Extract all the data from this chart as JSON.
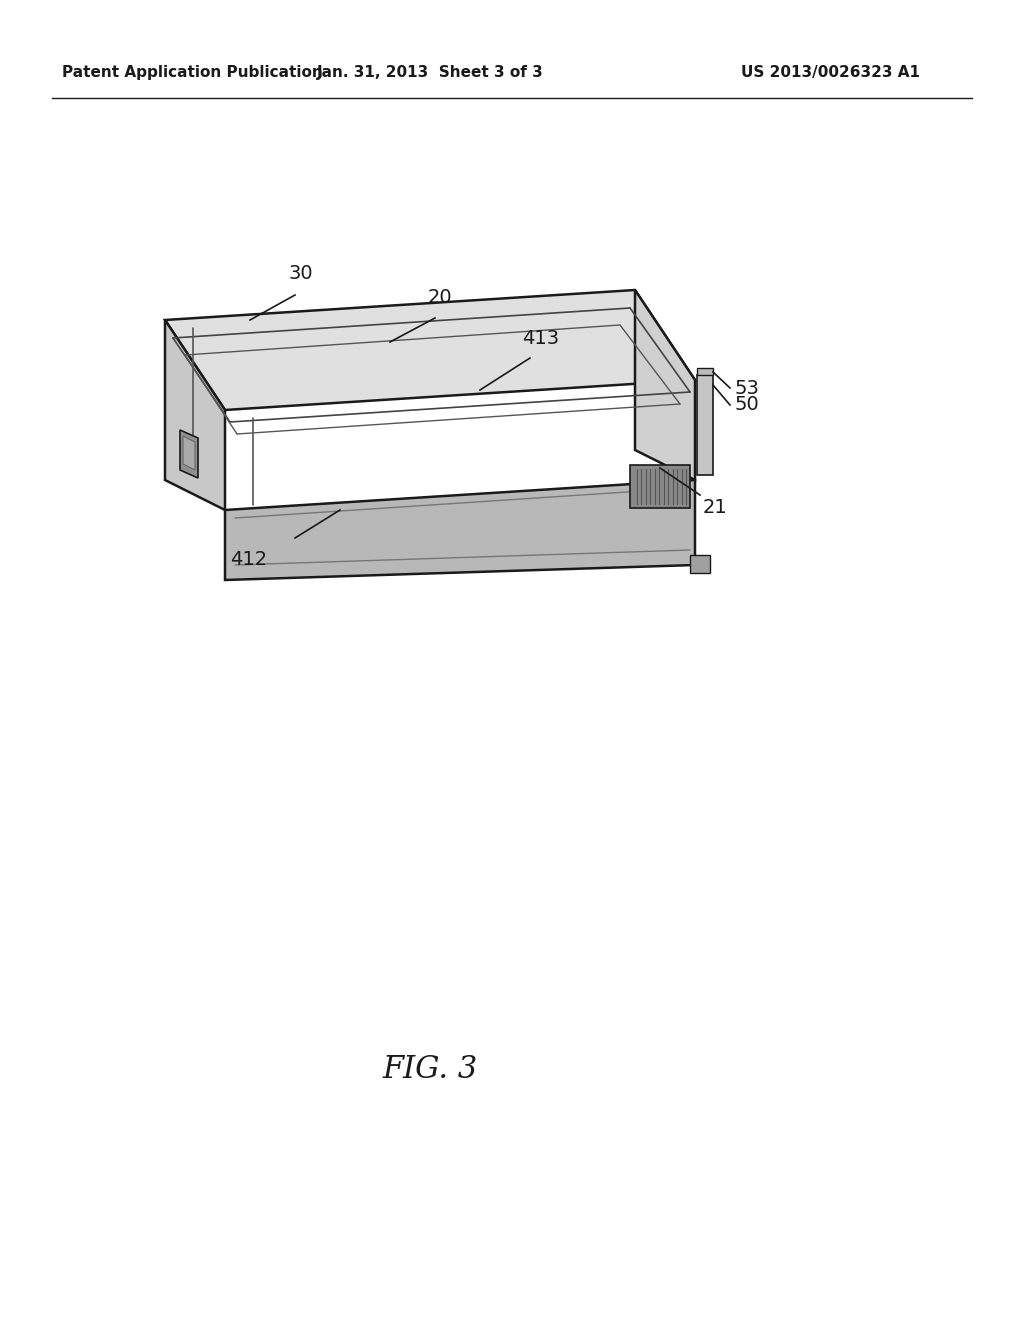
{
  "bg_color": "#ffffff",
  "line_color": "#1a1a1a",
  "header_left": "Patent Application Publication",
  "header_mid": "Jan. 31, 2013  Sheet 3 of 3",
  "header_right": "US 2013/0026323 A1",
  "fig_label": "FIG. 3"
}
